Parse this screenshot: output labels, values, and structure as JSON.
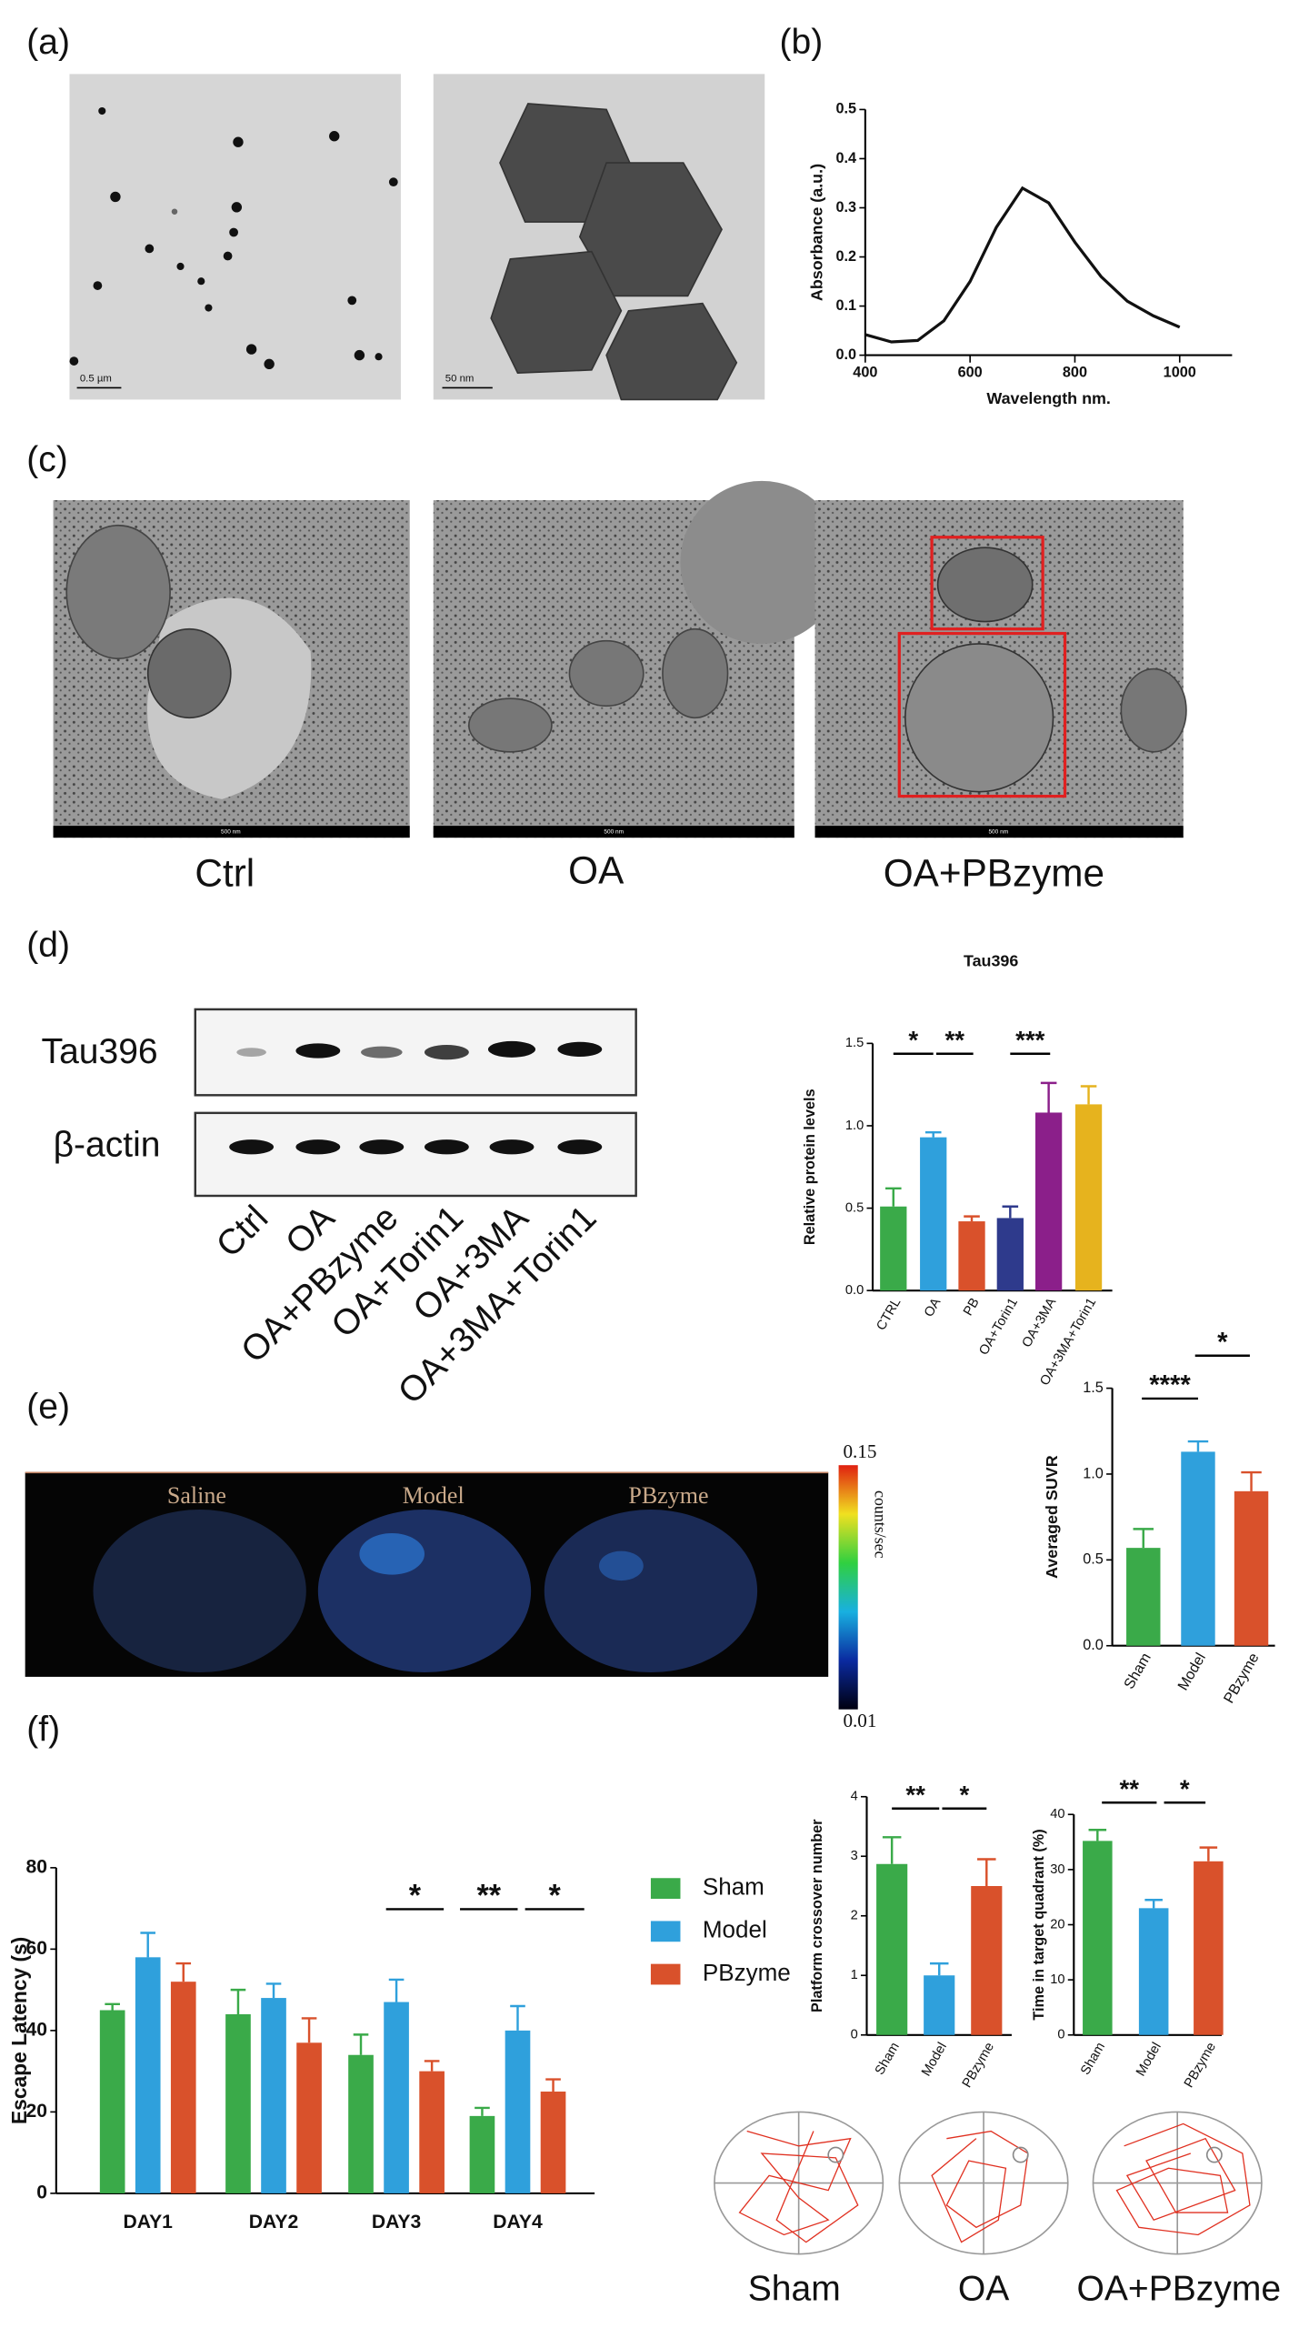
{
  "figure": {
    "panel_labels": [
      "(a)",
      "(b)",
      "(c)",
      "(d)",
      "(e)",
      "(f)"
    ],
    "tem_scale_bars": [
      "0.5 µm",
      "50 nm"
    ],
    "cell_scale_bar": "500 nm",
    "cell_labels": [
      "Ctrl",
      "OA",
      "OA+PBzyme"
    ],
    "blot_rows": [
      "Tau396",
      "β-actin"
    ],
    "blot_lanes": [
      "Ctrl",
      "OA",
      "OA+PBzyme",
      "OA+Torin1",
      "OA+3MA",
      "OA+3MA+Torin1"
    ],
    "pet_labels": [
      "Saline",
      "Model",
      "PBzyme"
    ],
    "colorbar": {
      "max": 0.15,
      "min": 0.01,
      "unit": "counts/sec"
    },
    "maze_labels": [
      "Sham",
      "OA",
      "OA+PBzyme"
    ]
  },
  "chart_data": [
    {
      "type": "line",
      "xlabel": "Wavelength nm.",
      "ylabel": "Absorbance (a.u.)",
      "x": [
        400,
        450,
        500,
        550,
        600,
        650,
        700,
        750,
        800,
        850,
        900,
        950,
        1000
      ],
      "values": [
        0.042,
        0.027,
        0.03,
        0.07,
        0.15,
        0.26,
        0.34,
        0.31,
        0.23,
        0.16,
        0.11,
        0.08,
        0.057
      ],
      "color": "#111111",
      "xlim": [
        400,
        1100
      ],
      "ylim": [
        0,
        0.5
      ],
      "xticks": [
        400,
        600,
        800,
        1000
      ],
      "yticks": [
        {
          "value": 0,
          "label": "0.0"
        },
        0.1,
        0.2,
        0.3,
        0.4,
        0.5
      ]
    },
    {
      "type": "bar",
      "title": "Tau396",
      "ylabel": "Relative protein levels",
      "categories": [
        "CTRL",
        "OA",
        "PB",
        "OA+Torin1",
        "OA+3MA",
        "OA+3MA+Torin1"
      ],
      "values": [
        0.51,
        0.93,
        0.42,
        0.44,
        1.08,
        1.13
      ],
      "errors": [
        0.11,
        0.03,
        0.03,
        0.07,
        0.18,
        0.11
      ],
      "colors": [
        "#3aaa49",
        "#2fa0dc",
        "#d9512b",
        "#2e3a8c",
        "#8b1f8a",
        "#e6b31e"
      ],
      "ylim": [
        0,
        1.5
      ],
      "yticks": [
        {
          "value": 0,
          "label": "0.0"
        },
        0.5,
        {
          "value": 1,
          "label": "1.0"
        },
        1.5
      ],
      "significance": [
        "*",
        "**",
        "***"
      ]
    },
    {
      "type": "bar",
      "ylabel": "Averaged SUVR",
      "categories": [
        "Sham",
        "Model",
        "PBzyme"
      ],
      "values": [
        0.57,
        1.13,
        0.9
      ],
      "errors": [
        0.11,
        0.06,
        0.11
      ],
      "colors": [
        "#3aaa49",
        "#2fa0dc",
        "#d9512b"
      ],
      "ylim": [
        0,
        1.5
      ],
      "yticks": [
        {
          "value": 0,
          "label": "0.0"
        },
        0.5,
        {
          "value": 1,
          "label": "1.0"
        },
        1.5
      ],
      "significance": [
        "****",
        "*"
      ]
    },
    {
      "type": "bar",
      "ylabel": "Escape Latency (s)",
      "categories": [
        "DAY1",
        "DAY2",
        "DAY3",
        "DAY4"
      ],
      "series": [
        {
          "name": "Sham",
          "color": "#3aaa49",
          "values": [
            45,
            44,
            34,
            19
          ],
          "errors": [
            1.5,
            6,
            5,
            2
          ]
        },
        {
          "name": "Model",
          "color": "#2fa0dc",
          "values": [
            58,
            48,
            47,
            40
          ],
          "errors": [
            6,
            3.5,
            5.5,
            6
          ]
        },
        {
          "name": "PBzyme",
          "color": "#d9512b",
          "values": [
            52,
            37,
            30,
            25
          ],
          "errors": [
            4.5,
            6,
            2.5,
            3
          ]
        }
      ],
      "ylim": [
        0,
        80
      ],
      "yticks": [
        0,
        20,
        40,
        60,
        80
      ],
      "significance": [
        "*",
        "**",
        "*"
      ]
    },
    {
      "type": "bar",
      "ylabel": "Platform crossover number",
      "categories": [
        "Sham",
        "Model",
        "PBzyme"
      ],
      "values": [
        2.87,
        1.0,
        2.5
      ],
      "errors": [
        0.45,
        0.2,
        0.45
      ],
      "colors": [
        "#3aaa49",
        "#2fa0dc",
        "#d9512b"
      ],
      "ylim": [
        0,
        4
      ],
      "yticks": [
        0,
        1,
        2,
        3,
        4
      ],
      "significance": [
        "**",
        "*"
      ]
    },
    {
      "type": "bar",
      "ylabel": "Time in target quadrant (%)",
      "categories": [
        "Sham",
        "Model",
        "PBzyme"
      ],
      "values": [
        35.2,
        23,
        31.5
      ],
      "errors": [
        2,
        1.5,
        2.5
      ],
      "colors": [
        "#3aaa49",
        "#2fa0dc",
        "#d9512b"
      ],
      "ylim": [
        0,
        40
      ],
      "yticks": [
        0,
        10,
        20,
        30,
        40
      ],
      "significance": [
        "**",
        "*"
      ]
    }
  ]
}
